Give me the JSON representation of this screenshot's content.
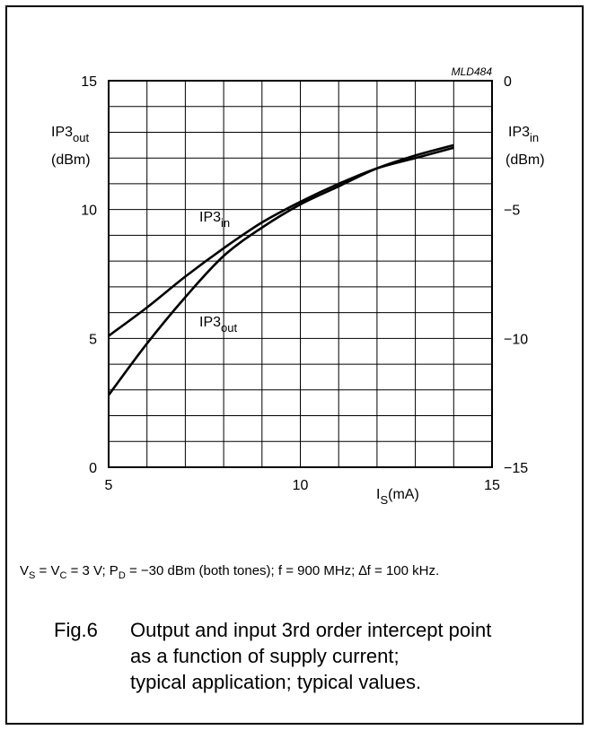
{
  "chart_data": {
    "type": "line",
    "figure_code": "MLD484",
    "x_axis": {
      "label_main": "I",
      "label_sub": "S",
      "label_unit": "(mA)",
      "range": [
        5,
        15
      ],
      "ticks": [
        5,
        10,
        15
      ],
      "tick_labels": [
        "5",
        "10",
        "15"
      ]
    },
    "y_left": {
      "label_main": "IP3",
      "label_sub": "out",
      "label_unit": "(dBm)",
      "range": [
        0,
        15
      ],
      "ticks": [
        0,
        5,
        10,
        15
      ],
      "tick_labels": [
        "0",
        "5",
        "10",
        "15"
      ]
    },
    "y_right": {
      "label_main": "IP3",
      "label_sub": "in",
      "label_unit": "(dBm)",
      "range": [
        -15,
        0
      ],
      "ticks": [
        -15,
        -10,
        -5,
        0
      ],
      "tick_labels": [
        "−15",
        "−10",
        "−5",
        "0"
      ]
    },
    "grid": true,
    "series": [
      {
        "name_main": "IP3",
        "name_sub": "in",
        "axis": "right",
        "x": [
          5,
          6,
          7,
          8,
          9,
          10,
          11,
          12,
          13,
          14
        ],
        "y": [
          -9.9,
          -8.8,
          -7.6,
          -6.5,
          -5.5,
          -4.7,
          -4.0,
          -3.4,
          -3.0,
          -2.6
        ]
      },
      {
        "name_main": "IP3",
        "name_sub": "out",
        "axis": "left",
        "x": [
          5,
          6,
          7,
          8,
          9,
          10,
          11,
          12,
          13,
          14
        ],
        "y": [
          2.8,
          4.8,
          6.6,
          8.2,
          9.3,
          10.2,
          10.9,
          11.6,
          12.1,
          12.5
        ]
      }
    ],
    "grid_divisions": {
      "x": 10,
      "y": 15
    }
  },
  "conditions": {
    "vs": "V",
    "vs_sub": "S",
    "eq1": " = V",
    "vc_sub": "C",
    "eq2": " = 3 V; P",
    "pd_sub": "D",
    "rest": " = −30 dBm (both tones); f = 900 MHz; ∆f = 100 kHz."
  },
  "caption": {
    "fig_label": "Fig.6",
    "lines": [
      "Output and input 3rd order intercept point",
      "as a function of supply current;",
      "typical application; typical values."
    ]
  }
}
